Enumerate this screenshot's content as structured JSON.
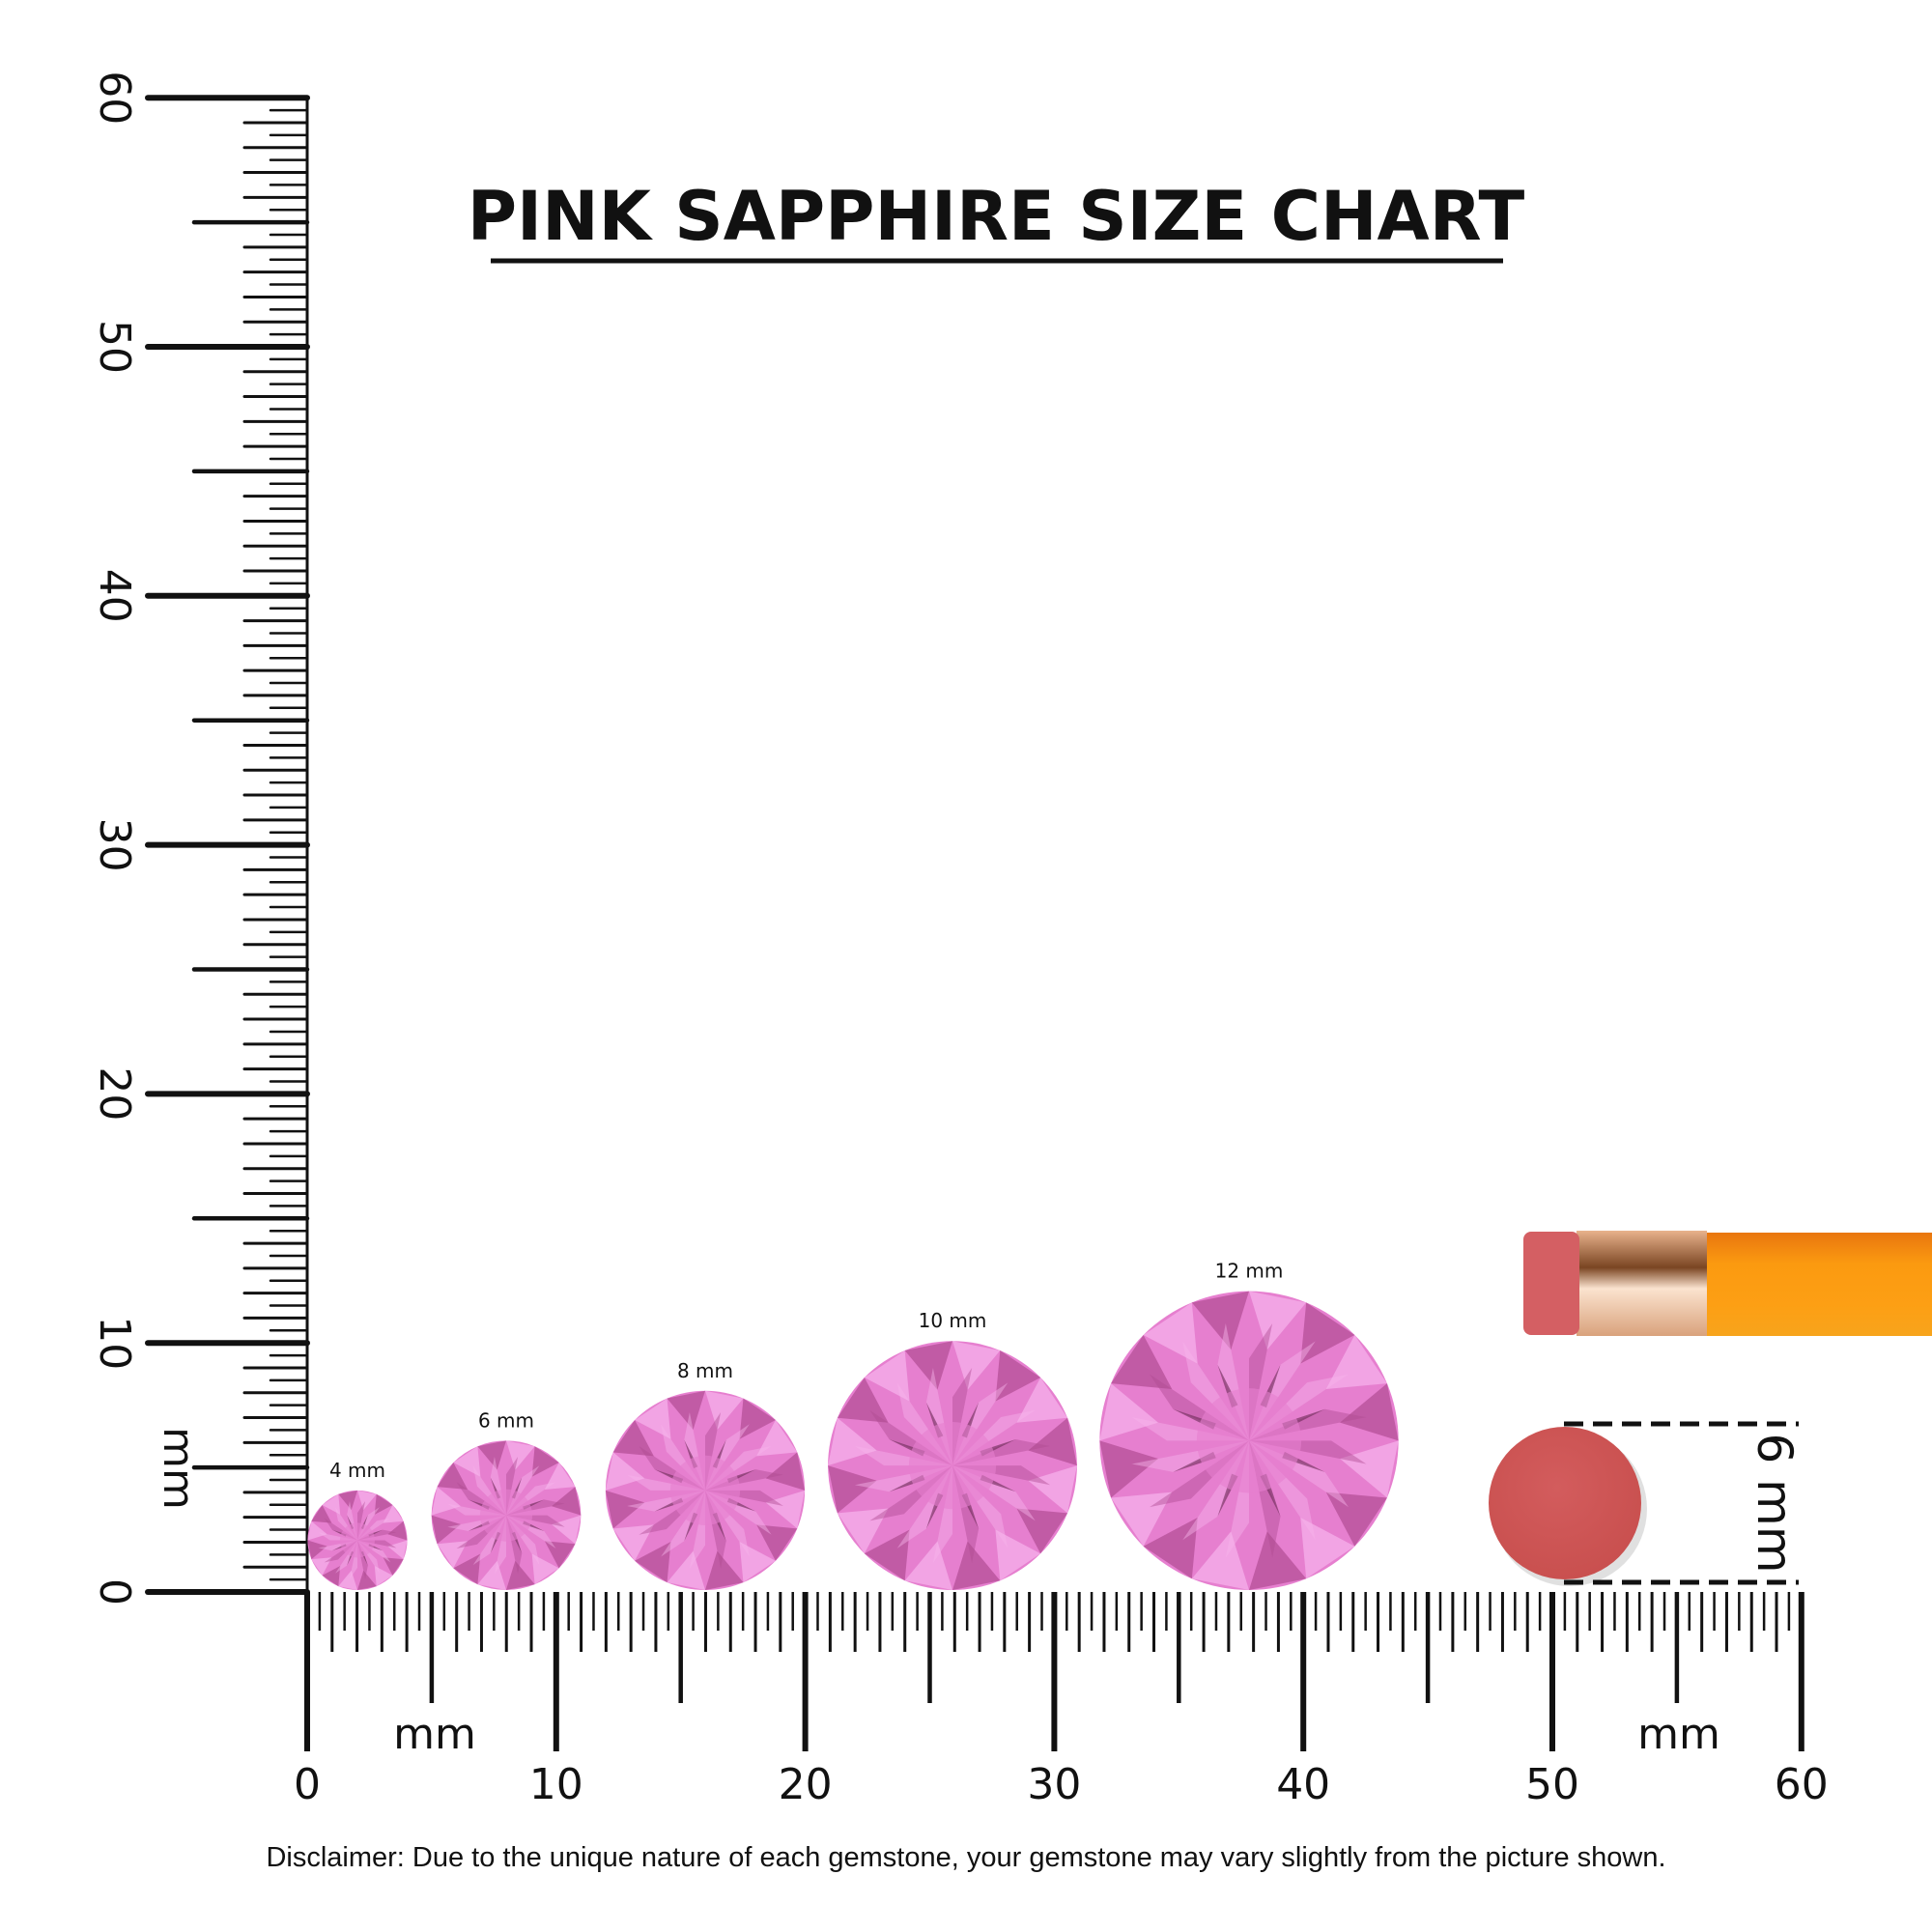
{
  "title": "PINK SAPPHIRE SIZE CHART",
  "ruler": {
    "unit_label": "mm",
    "min": 0,
    "max": 60,
    "labels": [
      "0",
      "10",
      "20",
      "30",
      "40",
      "50",
      "60"
    ]
  },
  "gems": [
    {
      "size_mm": 4,
      "label": "4 mm"
    },
    {
      "size_mm": 6,
      "label": "6 mm"
    },
    {
      "size_mm": 8,
      "label": "8 mm"
    },
    {
      "size_mm": 10,
      "label": "10 mm"
    },
    {
      "size_mm": 12,
      "label": "12 mm"
    }
  ],
  "reference": {
    "object": "pencil eraser",
    "size_label": "6 mm",
    "size_mm": 6
  },
  "colors": {
    "gem": "#e67fcf",
    "gem_dark": "#b04c93",
    "gem_light": "#f7b3ec",
    "eraser": "#d0585a",
    "pencil": "#fb9a10",
    "ferrule": "#d9a27c",
    "ink": "#111111"
  },
  "disclaimer": "Disclaimer: Due to the unique nature of each gemstone, your gemstone may vary slightly from the picture shown."
}
